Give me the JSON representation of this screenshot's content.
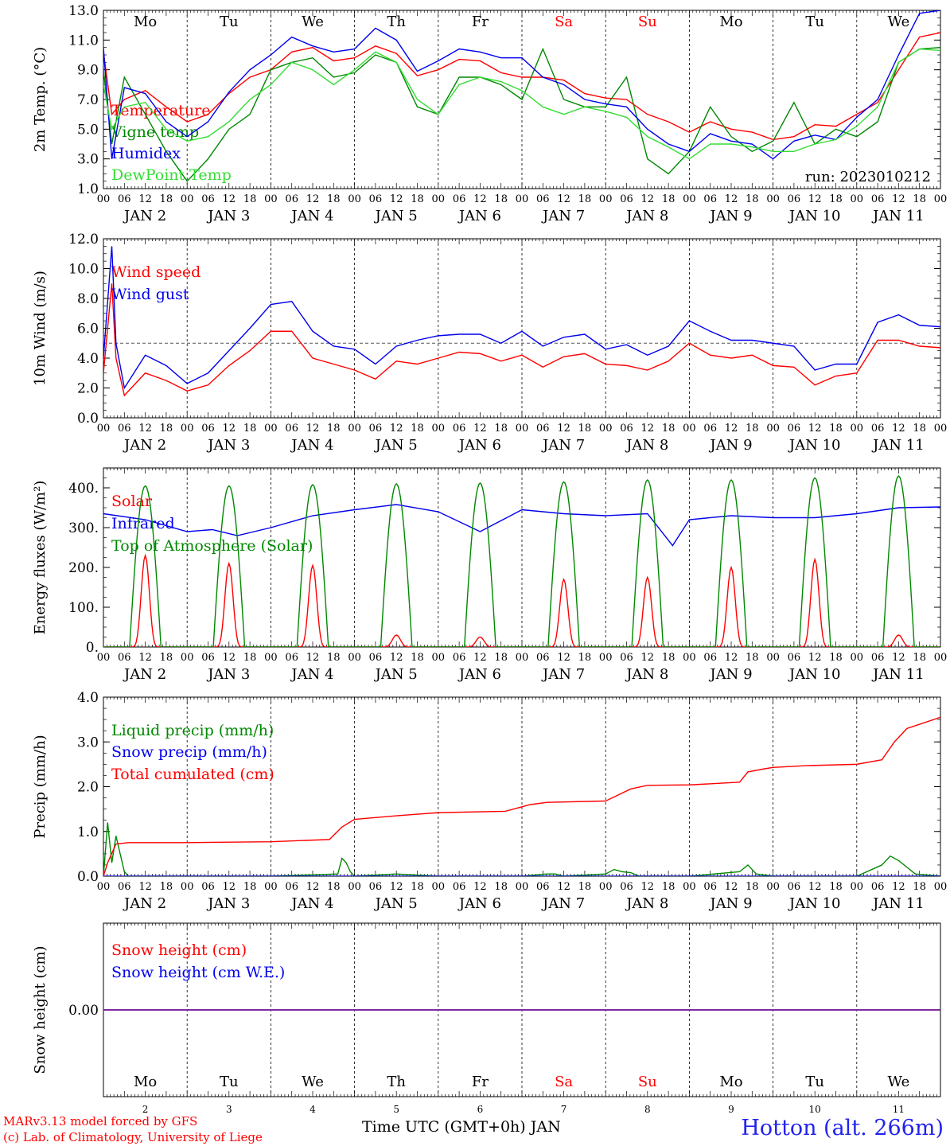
{
  "meteogram": {
    "run_label": "run: 2023010212",
    "x_axis_title": "Time UTC (GMT+0h) JAN",
    "station_label": "Hotton (alt. 266m)",
    "credit_lines": [
      "MARv3.13 model forced by GFS",
      "(c) Lab. of Climatology, University of Liege"
    ],
    "days": [
      {
        "dow": "Mo",
        "date": "JAN  2",
        "num": "2",
        "weekend": false
      },
      {
        "dow": "Tu",
        "date": "JAN  3",
        "num": "3",
        "weekend": false
      },
      {
        "dow": "We",
        "date": "JAN  4",
        "num": "4",
        "weekend": false
      },
      {
        "dow": "Th",
        "date": "JAN  5",
        "num": "5",
        "weekend": false
      },
      {
        "dow": "Fr",
        "date": "JAN  6",
        "num": "6",
        "weekend": false
      },
      {
        "dow": "Sa",
        "date": "JAN  7",
        "num": "7",
        "weekend": true
      },
      {
        "dow": "Su",
        "date": "JAN  8",
        "num": "8",
        "weekend": true
      },
      {
        "dow": "Mo",
        "date": "JAN  9",
        "num": "9",
        "weekend": false
      },
      {
        "dow": "Tu",
        "date": "JAN 10",
        "num": "10",
        "weekend": false
      },
      {
        "dow": "We",
        "date": "JAN 11",
        "num": "11",
        "weekend": false
      }
    ],
    "hour_ticks": [
      "00",
      "06",
      "12",
      "18"
    ],
    "colors": {
      "red": "#ff0000",
      "green": "#008800",
      "blue": "#0000ee",
      "lightgreen": "#33dd33",
      "weekend": "#ff0000",
      "weekday": "#000000",
      "snow_line": "#7f2aa0"
    }
  },
  "chart_data": [
    {
      "type": "line",
      "ylabel": "2m Temp. (°C)",
      "ylim": [
        1,
        13
      ],
      "ticks": [
        1,
        3,
        5,
        7,
        9,
        11,
        13
      ],
      "tick_labels": [
        "1.0",
        "3.0",
        "5.0",
        "7.0",
        "9.0",
        "11.0",
        "13.0"
      ],
      "show_dow": true,
      "x": [
        0,
        0.1,
        0.25,
        0.5,
        0.75,
        1.0,
        1.25,
        1.5,
        1.75,
        2.0,
        2.25,
        2.5,
        2.75,
        3.0,
        3.25,
        3.5,
        3.75,
        4.0,
        4.25,
        4.5,
        4.75,
        5.0,
        5.25,
        5.5,
        5.75,
        6.0,
        6.25,
        6.5,
        6.75,
        7.0,
        7.25,
        7.5,
        7.75,
        8.0,
        8.25,
        8.5,
        8.75,
        9.0,
        9.25,
        9.5,
        9.75,
        10.0
      ],
      "series": [
        {
          "name": "Temperature",
          "color": "#ff0000",
          "values": [
            10.2,
            6.0,
            7.0,
            7.6,
            6.5,
            5.5,
            6.0,
            7.4,
            8.5,
            9.0,
            10.2,
            10.5,
            9.6,
            9.8,
            10.6,
            10.1,
            8.6,
            9.0,
            9.7,
            9.6,
            8.8,
            8.5,
            8.5,
            8.3,
            7.4,
            7.1,
            7.0,
            6.0,
            5.5,
            4.8,
            5.5,
            5.0,
            4.8,
            4.3,
            4.5,
            5.3,
            5.2,
            6.0,
            6.8,
            9.0,
            11.2,
            11.5
          ]
        },
        {
          "name": "Vigne temp",
          "color": "#008800",
          "values": [
            9.0,
            4.0,
            8.5,
            6.0,
            3.5,
            1.5,
            3.0,
            5.0,
            6.0,
            9.0,
            9.5,
            9.8,
            8.5,
            8.8,
            10.0,
            9.5,
            6.5,
            6.0,
            8.5,
            8.5,
            8.0,
            7.0,
            10.4,
            7.0,
            6.5,
            6.5,
            8.5,
            3.0,
            2.0,
            3.5,
            6.5,
            4.5,
            3.5,
            4.2,
            6.8,
            4.0,
            5.0,
            4.5,
            5.5,
            9.5,
            10.4,
            10.5
          ]
        },
        {
          "name": "Humidex",
          "color": "#0000ee",
          "values": [
            10.5,
            3.0,
            7.8,
            7.4,
            5.5,
            4.5,
            5.5,
            7.5,
            9.0,
            10.0,
            11.2,
            10.6,
            10.2,
            10.4,
            11.8,
            11.0,
            8.9,
            9.6,
            10.4,
            10.2,
            9.8,
            9.8,
            8.5,
            8.0,
            7.0,
            6.7,
            6.5,
            5.0,
            4.0,
            3.5,
            4.7,
            4.2,
            4.0,
            3.0,
            4.2,
            4.6,
            4.3,
            5.8,
            7.0,
            10.0,
            12.8,
            13.0
          ]
        },
        {
          "name": "DewPoint Temp",
          "color": "#33dd33",
          "values": [
            8.0,
            5.0,
            6.5,
            6.8,
            5.0,
            4.2,
            4.5,
            5.5,
            7.0,
            8.0,
            9.5,
            9.0,
            8.0,
            9.0,
            10.2,
            9.5,
            7.0,
            6.0,
            8.0,
            8.5,
            8.2,
            7.6,
            6.5,
            6.0,
            6.5,
            6.2,
            5.8,
            4.5,
            3.8,
            3.0,
            4.0,
            4.0,
            3.8,
            3.5,
            3.5,
            4.0,
            4.3,
            5.2,
            6.5,
            9.5,
            10.4,
            10.3
          ]
        }
      ]
    },
    {
      "type": "line",
      "ylabel": "10m Wind (m/s)",
      "ylim": [
        0,
        12
      ],
      "ticks": [
        0,
        2,
        4,
        6,
        8,
        10,
        12
      ],
      "tick_labels": [
        "0.0",
        "2.0",
        "4.0",
        "6.0",
        "8.0",
        "10.0",
        "12.0"
      ],
      "show_dow": false,
      "ref_line": 5,
      "x": [
        0,
        0.1,
        0.15,
        0.25,
        0.5,
        0.75,
        1.0,
        1.25,
        1.5,
        1.75,
        2.0,
        2.25,
        2.5,
        2.75,
        3.0,
        3.25,
        3.5,
        3.75,
        4.0,
        4.25,
        4.5,
        4.75,
        5.0,
        5.25,
        5.5,
        5.75,
        6.0,
        6.25,
        6.5,
        6.75,
        7.0,
        7.25,
        7.5,
        7.75,
        8.0,
        8.25,
        8.5,
        8.75,
        9.0,
        9.25,
        9.5,
        9.75,
        10.0
      ],
      "series": [
        {
          "name": "Wind speed",
          "color": "#ff0000",
          "values": [
            3.0,
            9.0,
            4.0,
            1.5,
            3.0,
            2.5,
            1.8,
            2.2,
            3.5,
            4.5,
            5.8,
            5.8,
            4.0,
            3.6,
            3.2,
            2.6,
            3.8,
            3.6,
            4.0,
            4.4,
            4.3,
            3.8,
            4.2,
            3.4,
            4.1,
            4.3,
            3.6,
            3.5,
            3.2,
            3.8,
            5.0,
            4.2,
            4.0,
            4.2,
            3.5,
            3.4,
            2.2,
            2.8,
            3.0,
            5.2,
            5.2,
            4.8,
            4.7
          ]
        },
        {
          "name": "Wind gust",
          "color": "#0000ee",
          "values": [
            4.0,
            11.5,
            5.0,
            2.0,
            4.2,
            3.5,
            2.3,
            3.0,
            4.5,
            6.0,
            7.6,
            7.8,
            5.8,
            4.8,
            4.6,
            3.6,
            4.8,
            5.2,
            5.5,
            5.6,
            5.6,
            5.0,
            5.8,
            4.8,
            5.4,
            5.6,
            4.6,
            4.9,
            4.2,
            4.8,
            6.5,
            5.8,
            5.2,
            5.2,
            5.0,
            4.8,
            3.2,
            3.6,
            3.6,
            6.4,
            6.9,
            6.2,
            6.1
          ]
        }
      ]
    },
    {
      "type": "line",
      "ylabel": "Energy fluxes (W/m²)",
      "ylim": [
        0,
        450
      ],
      "ticks": [
        0,
        100,
        200,
        300,
        400
      ],
      "tick_labels": [
        "0.",
        "100.",
        "200.",
        "300.",
        "400."
      ],
      "show_dow": false,
      "toa_peaks": [
        405,
        405,
        408,
        410,
        412,
        415,
        420,
        420,
        425,
        430
      ],
      "solar_peaks": [
        230,
        210,
        205,
        30,
        25,
        170,
        175,
        200,
        220,
        30
      ],
      "series": [
        {
          "name": "Solar",
          "color": "#ff0000"
        },
        {
          "name": "Infrared",
          "color": "#0000ee",
          "x": [
            0,
            0.5,
            1.0,
            1.3,
            1.6,
            2.0,
            2.5,
            3.0,
            3.5,
            4.0,
            4.5,
            5.0,
            5.5,
            6.0,
            6.5,
            6.8,
            7.0,
            7.5,
            8.0,
            8.5,
            9.0,
            9.5,
            10.0
          ],
          "values": [
            335,
            320,
            290,
            295,
            280,
            300,
            330,
            345,
            358,
            340,
            290,
            345,
            335,
            330,
            335,
            255,
            320,
            330,
            325,
            325,
            335,
            350,
            352
          ]
        },
        {
          "name": "Top of Atmosphere (Solar)",
          "color": "#008800"
        }
      ]
    },
    {
      "type": "line",
      "ylabel": "Precip (mm/h)",
      "ylim": [
        0,
        4
      ],
      "ticks": [
        0,
        1,
        2,
        3,
        4
      ],
      "tick_labels": [
        "0.0",
        "1.0",
        "2.0",
        "3.0",
        "4.0"
      ],
      "show_dow": false,
      "series": [
        {
          "name": "Liquid precip (mm/h)",
          "color": "#008800",
          "x": [
            0,
            0.05,
            0.1,
            0.15,
            0.2,
            0.25,
            0.3,
            2.0,
            2.8,
            2.85,
            2.9,
            2.95,
            3.0,
            3.5,
            4.0,
            5.0,
            5.3,
            5.4,
            5.5,
            6.0,
            6.1,
            6.2,
            6.3,
            6.4,
            7.0,
            7.6,
            7.7,
            7.8,
            8.0,
            9.0,
            9.3,
            9.4,
            9.5,
            9.6,
            9.7,
            10.0
          ],
          "values": [
            0,
            1.2,
            0.3,
            0.9,
            0.5,
            0.1,
            0,
            0,
            0.05,
            0.4,
            0.3,
            0.1,
            0,
            0.05,
            0,
            0,
            0.05,
            0.05,
            0,
            0.05,
            0.15,
            0.1,
            0.08,
            0,
            0,
            0.1,
            0.25,
            0.05,
            0,
            0,
            0.25,
            0.45,
            0.35,
            0.2,
            0.05,
            0
          ]
        },
        {
          "name": "Snow precip (mm/h)",
          "color": "#0000ee",
          "x": [
            0,
            10
          ],
          "values": [
            0,
            0
          ]
        },
        {
          "name": "Total cumulated (cm)",
          "color": "#ff0000",
          "x": [
            0,
            0.05,
            0.15,
            0.3,
            1.0,
            2.0,
            2.7,
            2.85,
            3.0,
            3.5,
            4.0,
            4.8,
            5.1,
            5.3,
            6.0,
            6.3,
            6.5,
            7.0,
            7.6,
            7.7,
            7.9,
            8.0,
            8.4,
            8.6,
            9.0,
            9.3,
            9.45,
            9.6,
            10.0
          ],
          "values": [
            0,
            0.3,
            0.72,
            0.75,
            0.75,
            0.77,
            0.82,
            1.1,
            1.27,
            1.35,
            1.42,
            1.45,
            1.6,
            1.65,
            1.68,
            1.95,
            2.03,
            2.04,
            2.1,
            2.33,
            2.4,
            2.43,
            2.47,
            2.48,
            2.5,
            2.6,
            3.0,
            3.3,
            3.55
          ]
        }
      ]
    },
    {
      "type": "line",
      "ylabel": "Snow height (cm)",
      "ylim": [
        -1,
        1
      ],
      "ticks": [
        0
      ],
      "tick_labels": [
        "0.00"
      ],
      "show_dow": false,
      "series": [
        {
          "name": "Snow height (cm)",
          "color": "#ff0000",
          "x": [
            0,
            10
          ],
          "values": [
            0,
            0
          ]
        },
        {
          "name": "Snow height (cm W.E.)",
          "color": "#0000ee",
          "x": [
            0,
            10
          ],
          "values": [
            0,
            0
          ]
        }
      ]
    }
  ]
}
